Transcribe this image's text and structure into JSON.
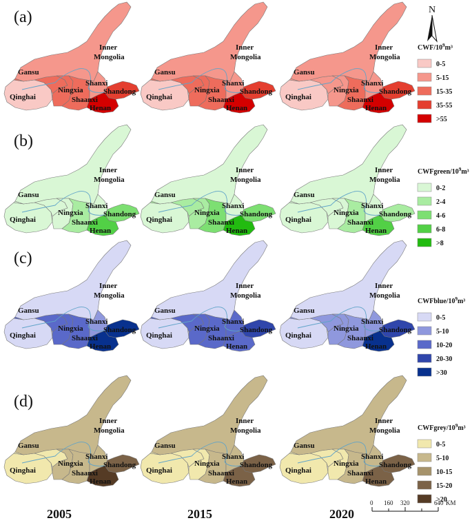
{
  "north": {
    "label": "N"
  },
  "years": [
    "2005",
    "2015",
    "2020"
  ],
  "scale_bar": {
    "ticks": [
      "0",
      "160",
      "320",
      "640"
    ],
    "unit": "KM"
  },
  "province_labels": {
    "inner_line1": "Inner",
    "inner_line2": "Mongolia",
    "gansu": "Gansu",
    "qinghai": "Qinghai",
    "ningxia": "Ningxia",
    "shanxi": "Shanxi",
    "shaanxi": "Shaanxi",
    "shandong": "Shandong",
    "henan": "Henan"
  },
  "panels": [
    {
      "label": "(a)",
      "legend": {
        "title_main": "CWF/10",
        "title_sup": "9",
        "title_tail": "m³",
        "classes": [
          {
            "label": "0-5",
            "color": "#f9c9c5"
          },
          {
            "label": "5-15",
            "color": "#f5978c"
          },
          {
            "label": "15-35",
            "color": "#ee6c5c"
          },
          {
            "label": "35-55",
            "color": "#e43f30"
          },
          {
            "label": ">55",
            "color": "#d40000"
          }
        ]
      },
      "classes_by_year": [
        {
          "qinghai": 0,
          "gansu": 2,
          "inner": 1,
          "ningxia": 2,
          "shaanxi": 2,
          "shanxi": 1,
          "henan": 4,
          "shandong": 3
        },
        {
          "qinghai": 0,
          "gansu": 2,
          "inner": 1,
          "ningxia": 2,
          "shaanxi": 2,
          "shanxi": 1,
          "henan": 4,
          "shandong": 3
        },
        {
          "qinghai": 0,
          "gansu": 1,
          "inner": 1,
          "ningxia": 1,
          "shaanxi": 2,
          "shanxi": 1,
          "henan": 4,
          "shandong": 3
        }
      ]
    },
    {
      "label": "(b)",
      "legend": {
        "title_main": "CWFgreen/10",
        "title_sup": "9",
        "title_tail": "m³",
        "classes": [
          {
            "label": "0-2",
            "color": "#d9f7d5"
          },
          {
            "label": "2-4",
            "color": "#a9eca1"
          },
          {
            "label": "4-6",
            "color": "#7ddf72"
          },
          {
            "label": "6-8",
            "color": "#52d046"
          },
          {
            "label": ">8",
            "color": "#22bb10"
          }
        ]
      },
      "classes_by_year": [
        {
          "qinghai": 0,
          "gansu": 0,
          "inner": 0,
          "ningxia": 0,
          "shaanxi": 1,
          "shanxi": 0,
          "henan": 3,
          "shandong": 2
        },
        {
          "qinghai": 0,
          "gansu": 1,
          "inner": 0,
          "ningxia": 1,
          "shaanxi": 2,
          "shanxi": 0,
          "henan": 4,
          "shandong": 2
        },
        {
          "qinghai": 0,
          "gansu": 0,
          "inner": 0,
          "ningxia": 0,
          "shaanxi": 1,
          "shanxi": 0,
          "henan": 3,
          "shandong": 1
        }
      ]
    },
    {
      "label": "(c)",
      "legend": {
        "title_main": "CWFblue/10",
        "title_sup": "9",
        "title_tail": "m³",
        "classes": [
          {
            "label": "0-5",
            "color": "#d7d9f5"
          },
          {
            "label": "5-10",
            "color": "#8f98dd"
          },
          {
            "label": "10-20",
            "color": "#5a69c9"
          },
          {
            "label": "20-30",
            "color": "#3046ab"
          },
          {
            "label": ">30",
            "color": "#08318e"
          }
        ]
      },
      "classes_by_year": [
        {
          "qinghai": 0,
          "gansu": 2,
          "inner": 0,
          "ningxia": 2,
          "shaanxi": 2,
          "shanxi": 1,
          "henan": 4,
          "shandong": 4
        },
        {
          "qinghai": 0,
          "gansu": 2,
          "inner": 0,
          "ningxia": 2,
          "shaanxi": 2,
          "shanxi": 2,
          "henan": 2,
          "shandong": 3
        },
        {
          "qinghai": 0,
          "gansu": 1,
          "inner": 0,
          "ningxia": 1,
          "shaanxi": 1,
          "shanxi": 1,
          "henan": 4,
          "shandong": 3
        }
      ]
    },
    {
      "label": "(d)",
      "legend": {
        "title_main": "CWFgrey/10",
        "title_sup": "9",
        "title_tail": "m³",
        "classes": [
          {
            "label": "0-5",
            "color": "#f1e8ad"
          },
          {
            "label": "5-10",
            "color": "#c7b88c"
          },
          {
            "label": "10-15",
            "color": "#a6936b"
          },
          {
            "label": "15-20",
            "color": "#7b6247"
          },
          {
            "label": ">20",
            "color": "#553b25"
          }
        ]
      },
      "classes_by_year": [
        {
          "qinghai": 0,
          "gansu": 0,
          "inner": 1,
          "ningxia": 1,
          "shaanxi": 1,
          "shanxi": 1,
          "henan": 4,
          "shandong": 3
        },
        {
          "qinghai": 0,
          "gansu": 0,
          "inner": 1,
          "ningxia": 0,
          "shaanxi": 1,
          "shanxi": 1,
          "henan": 3,
          "shandong": 3
        },
        {
          "qinghai": 0,
          "gansu": 0,
          "inner": 1,
          "ningxia": 0,
          "shaanxi": 1,
          "shanxi": 1,
          "henan": 3,
          "shandong": 3
        }
      ]
    }
  ]
}
